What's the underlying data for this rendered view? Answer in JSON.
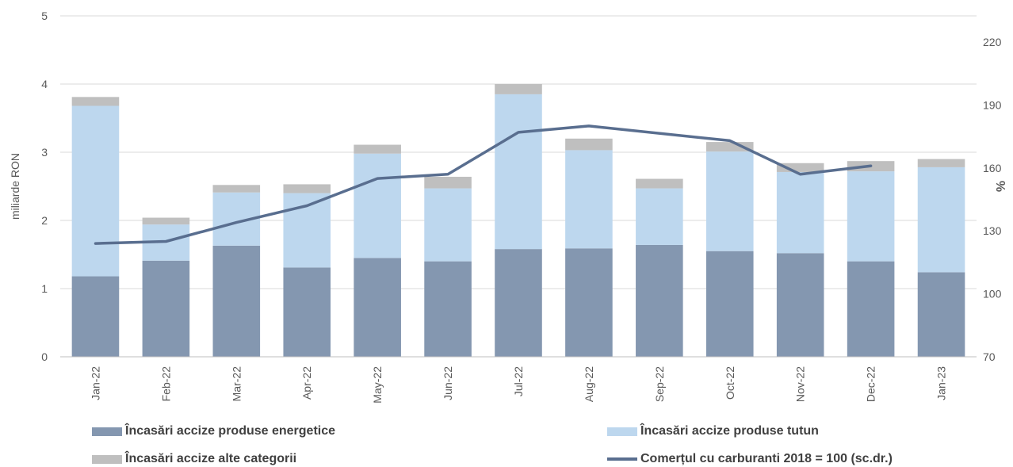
{
  "chart_data": {
    "type": "bar",
    "stacked": true,
    "categories": [
      "Jan-22",
      "Feb-22",
      "Mar-22",
      "Apr-22",
      "May-22",
      "Jun-22",
      "Jul-22",
      "Aug-22",
      "Sep-22",
      "Oct-22",
      "Nov-22",
      "Dec-22",
      "Jan-23"
    ],
    "series": [
      {
        "name": "Încasări accize produse energetice",
        "type": "bar",
        "color": "#8497b0",
        "values": [
          1.18,
          1.41,
          1.63,
          1.31,
          1.45,
          1.4,
          1.58,
          1.59,
          1.64,
          1.55,
          1.52,
          1.4,
          1.24
        ]
      },
      {
        "name": "Încasări accize produse tutun",
        "type": "bar",
        "color": "#bdd7ee",
        "values": [
          2.5,
          0.53,
          0.78,
          1.09,
          1.53,
          1.07,
          2.27,
          1.44,
          0.83,
          1.46,
          1.19,
          1.32,
          1.54
        ]
      },
      {
        "name": "Încasări accize alte categorii",
        "type": "bar",
        "color": "#bfbfbf",
        "values": [
          0.13,
          0.1,
          0.11,
          0.13,
          0.13,
          0.17,
          0.15,
          0.17,
          0.14,
          0.14,
          0.13,
          0.15,
          0.12
        ]
      },
      {
        "name": "Comerțul cu carburanti 2018 = 100 (sc.dr.)",
        "type": "line",
        "axis": "right",
        "color": "#596e8f",
        "values": [
          124,
          125,
          134,
          142,
          155,
          157,
          177,
          180,
          null,
          173,
          157,
          161,
          null
        ]
      }
    ],
    "ylabel": "miliarde RON",
    "ylim": [
      0,
      5
    ],
    "yticks": [
      0,
      1,
      2,
      3,
      4,
      5
    ],
    "y2label": "%",
    "y2lim": [
      70,
      232.5
    ],
    "y2ticks": [
      70,
      100,
      130,
      160,
      190,
      220
    ],
    "grid": true,
    "legend": "bottom"
  }
}
